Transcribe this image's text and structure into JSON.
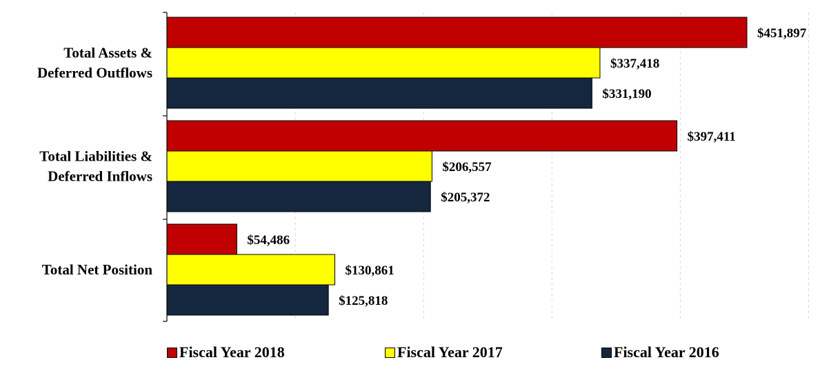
{
  "chart_data": {
    "type": "bar",
    "orientation": "horizontal",
    "categories": [
      [
        "Total Assets &",
        "Deferred Outflows"
      ],
      [
        "Total Liabilities &",
        "Deferred Inflows"
      ],
      [
        "Total Net Position"
      ]
    ],
    "series": [
      {
        "name": "Fiscal Year 2018",
        "color": "#C00000",
        "values": [
          451897,
          397411,
          54486
        ],
        "labels": [
          "$451,897",
          "$397,411",
          "$54,486"
        ]
      },
      {
        "name": "Fiscal Year 2017",
        "color": "#FFFF00",
        "values": [
          337418,
          206557,
          130861
        ],
        "labels": [
          "$337,418",
          "$206,557",
          "$130,861"
        ]
      },
      {
        "name": "Fiscal Year 2016",
        "color": "#14273F",
        "values": [
          331190,
          205372,
          125818
        ],
        "labels": [
          "$331,190",
          "$205,372",
          "$125,818"
        ]
      }
    ],
    "xlim": [
      0,
      500000
    ],
    "gridlines": "vertical-dashed",
    "legend_position": "bottom"
  }
}
